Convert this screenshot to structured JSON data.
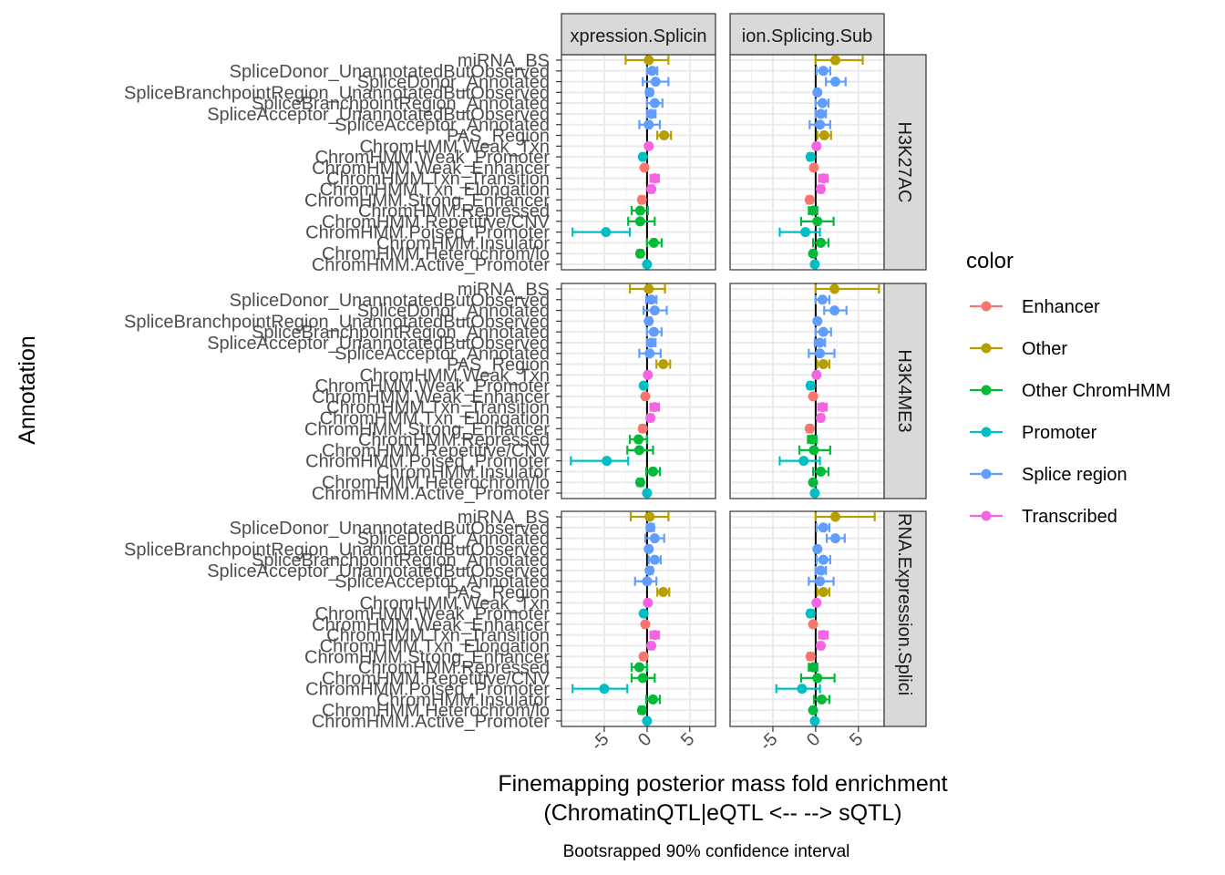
{
  "chart_data": {
    "type": "scatter",
    "subtype": "faceted point-range (dot with 90% CI error bars)",
    "xlabel": "Finemapping posterior mass fold enrichment\n(ChromatinQTL|eQTL <-- --> sQTL)",
    "caption": "Bootsrapped 90% confidence interval",
    "ylabel": "Annotation",
    "xlim": [
      -10,
      8
    ],
    "xticks": [
      -5,
      0,
      5
    ],
    "xtick_labels": [
      "-5",
      "0",
      "5"
    ],
    "reference_line_x": 0,
    "grid": true,
    "legend_title": "color",
    "legend_position": "right",
    "legend": [
      {
        "label": "Enhancer",
        "color": "#F8766D"
      },
      {
        "label": "Other",
        "color": "#B79F00"
      },
      {
        "label": "Other ChromHMM",
        "color": "#00BA38"
      },
      {
        "label": "Promoter",
        "color": "#00BFC4"
      },
      {
        "label": "Splice region",
        "color": "#619CFF"
      },
      {
        "label": "Transcribed",
        "color": "#F564E3"
      }
    ],
    "col_strips": [
      "xpression.Splicin",
      "ion.Splicing.Sub"
    ],
    "row_strips": [
      "H3K27AC",
      "H3K4ME3",
      "RNA.Expression.Splici"
    ],
    "annotations": [
      {
        "label": "miRNA_BS",
        "cat": "Other"
      },
      {
        "label": "SpliceDonor_UnannotatedButObserved",
        "cat": "Splice region"
      },
      {
        "label": "SpliceDonor_Annotated",
        "cat": "Splice region"
      },
      {
        "label": "SpliceBranchpointRegion_UnannotatedButObserved",
        "cat": "Splice region"
      },
      {
        "label": "SpliceBranchpointRegion_Annotated",
        "cat": "Splice region"
      },
      {
        "label": "SpliceAcceptor_UnannotatedButObserved",
        "cat": "Splice region"
      },
      {
        "label": "SpliceAcceptor_Annotated",
        "cat": "Splice region"
      },
      {
        "label": "PAS_Region",
        "cat": "Other"
      },
      {
        "label": "ChromHMM.Weak_Txn",
        "cat": "Transcribed"
      },
      {
        "label": "ChromHMM.Weak_Promoter",
        "cat": "Promoter"
      },
      {
        "label": "ChromHMM.Weak_Enhancer",
        "cat": "Enhancer"
      },
      {
        "label": "ChromHMM.Txn_Transition",
        "cat": "Transcribed"
      },
      {
        "label": "ChromHMM.Txn_Elongation",
        "cat": "Transcribed"
      },
      {
        "label": "ChromHMM.Strong_Enhancer",
        "cat": "Enhancer"
      },
      {
        "label": "ChromHMM.Repressed",
        "cat": "Other ChromHMM"
      },
      {
        "label": "ChromHMM.Repetitive/CNV",
        "cat": "Other ChromHMM"
      },
      {
        "label": "ChromHMM.Poised_Promoter",
        "cat": "Promoter"
      },
      {
        "label": "ChromHMM.Insulator",
        "cat": "Other ChromHMM"
      },
      {
        "label": "ChromHMM.Heterochrom/lo",
        "cat": "Other ChromHMM"
      },
      {
        "label": "ChromHMM.Active_Promoter",
        "cat": "Promoter"
      }
    ],
    "panels": [
      {
        "row": 0,
        "col": 0,
        "points": [
          [
            0.2,
            -2.5,
            2.5
          ],
          [
            0.6,
            0,
            1.2
          ],
          [
            1.0,
            -0.5,
            2.5
          ],
          [
            0.3,
            -0.1,
            0.6
          ],
          [
            0.9,
            0,
            1.8
          ],
          [
            0.5,
            0,
            1.0
          ],
          [
            0.2,
            -0.9,
            1.5
          ],
          [
            2.0,
            1.2,
            2.8
          ],
          [
            0.2,
            0,
            0.4
          ],
          [
            -0.5,
            -0.7,
            -0.3
          ],
          [
            -0.3,
            -0.5,
            -0.1
          ],
          [
            0.9,
            0.4,
            1.4
          ],
          [
            0.5,
            0.2,
            0.8
          ],
          [
            -0.6,
            -0.9,
            -0.3
          ],
          [
            -0.8,
            -1.8,
            0.1
          ],
          [
            -0.8,
            -2.2,
            0.9
          ],
          [
            -4.8,
            -8.7,
            -2.0
          ],
          [
            0.8,
            0,
            1.7
          ],
          [
            -0.8,
            -1.1,
            -0.5
          ],
          [
            0,
            -0.2,
            0.2
          ]
        ]
      },
      {
        "row": 0,
        "col": 1,
        "points": [
          [
            2.3,
            0,
            5.5
          ],
          [
            0.9,
            0.1,
            1.7
          ],
          [
            2.3,
            1.2,
            3.5
          ],
          [
            0.2,
            0,
            0.4
          ],
          [
            0.8,
            0,
            1.5
          ],
          [
            0.6,
            0,
            1.2
          ],
          [
            0.5,
            -0.7,
            1.7
          ],
          [
            1.0,
            0.2,
            1.8
          ],
          [
            0.1,
            -0.1,
            0.3
          ],
          [
            -0.6,
            -0.9,
            -0.3
          ],
          [
            -0.2,
            -0.4,
            0
          ],
          [
            0.9,
            0.4,
            1.4
          ],
          [
            0.6,
            0.3,
            0.9
          ],
          [
            -0.7,
            -1.0,
            -0.4
          ],
          [
            -0.3,
            -0.8,
            0.2
          ],
          [
            0.2,
            -1.7,
            2.1
          ],
          [
            -1.2,
            -4.2,
            0.5
          ],
          [
            0.6,
            -0.3,
            1.5
          ],
          [
            -0.3,
            -0.5,
            -0.1
          ],
          [
            -0.1,
            -0.3,
            0.1
          ]
        ]
      },
      {
        "row": 1,
        "col": 0,
        "points": [
          [
            0.2,
            -2.0,
            2.1
          ],
          [
            0.5,
            -0.1,
            1.1
          ],
          [
            0.9,
            -0.4,
            2.3
          ],
          [
            0.2,
            -0.1,
            0.5
          ],
          [
            0.8,
            0,
            1.7
          ],
          [
            0.5,
            0,
            1.0
          ],
          [
            0.3,
            -0.9,
            1.6
          ],
          [
            1.9,
            1.1,
            2.7
          ],
          [
            0.1,
            -0.1,
            0.3
          ],
          [
            -0.4,
            -0.6,
            -0.2
          ],
          [
            -0.2,
            -0.4,
            0
          ],
          [
            0.9,
            0.4,
            1.4
          ],
          [
            0.4,
            0.1,
            0.7
          ],
          [
            -0.5,
            -0.8,
            -0.2
          ],
          [
            -1.0,
            -2.0,
            0
          ],
          [
            -0.9,
            -2.3,
            0.7
          ],
          [
            -4.7,
            -8.9,
            -2.2
          ],
          [
            0.7,
            -0.1,
            1.5
          ],
          [
            -0.8,
            -1.1,
            -0.5
          ],
          [
            0,
            -0.2,
            0.2
          ]
        ]
      },
      {
        "row": 1,
        "col": 1,
        "points": [
          [
            2.2,
            0,
            7.4
          ],
          [
            0.8,
            0,
            1.6
          ],
          [
            2.2,
            1.0,
            3.6
          ],
          [
            0.2,
            0,
            0.4
          ],
          [
            0.9,
            0,
            1.8
          ],
          [
            0.5,
            -0.1,
            1.1
          ],
          [
            0.5,
            -0.8,
            2.2
          ],
          [
            0.9,
            0.2,
            1.6
          ],
          [
            0.1,
            -0.1,
            0.3
          ],
          [
            -0.6,
            -0.9,
            -0.3
          ],
          [
            -0.3,
            -0.5,
            -0.1
          ],
          [
            0.8,
            0.3,
            1.3
          ],
          [
            0.6,
            0.3,
            0.9
          ],
          [
            -0.7,
            -1.0,
            -0.4
          ],
          [
            -0.4,
            -0.9,
            0.1
          ],
          [
            -0.2,
            -1.9,
            1.7
          ],
          [
            -1.4,
            -4.2,
            0.5
          ],
          [
            0.6,
            -0.3,
            1.5
          ],
          [
            -0.3,
            -0.5,
            -0.1
          ],
          [
            -0.1,
            -0.3,
            0.1
          ]
        ]
      },
      {
        "row": 2,
        "col": 0,
        "points": [
          [
            0.3,
            -1.9,
            2.5
          ],
          [
            0.4,
            0,
            0.8
          ],
          [
            0.9,
            -0.2,
            2.0
          ],
          [
            0.2,
            0,
            0.4
          ],
          [
            0.9,
            0.2,
            1.6
          ],
          [
            0.3,
            0,
            0.6
          ],
          [
            0.0,
            -1.4,
            1.1
          ],
          [
            1.9,
            1.2,
            2.6
          ],
          [
            0.1,
            -0.1,
            0.3
          ],
          [
            -0.4,
            -0.6,
            -0.2
          ],
          [
            -0.2,
            -0.4,
            0
          ],
          [
            0.9,
            0.4,
            1.4
          ],
          [
            0.5,
            0.2,
            0.8
          ],
          [
            -0.4,
            -0.7,
            -0.1
          ],
          [
            -0.9,
            -1.8,
            0
          ],
          [
            -0.5,
            -1.8,
            0.9
          ],
          [
            -5.0,
            -8.7,
            -2.3
          ],
          [
            0.7,
            -0.1,
            1.5
          ],
          [
            -0.6,
            -0.9,
            -0.3
          ],
          [
            0,
            -0.2,
            0.2
          ]
        ]
      },
      {
        "row": 2,
        "col": 1,
        "points": [
          [
            2.3,
            0,
            6.9
          ],
          [
            0.9,
            0.1,
            1.6
          ],
          [
            2.3,
            1.3,
            3.4
          ],
          [
            0.2,
            0,
            0.4
          ],
          [
            0.9,
            0.1,
            1.7
          ],
          [
            0.6,
            0,
            1.2
          ],
          [
            0.5,
            -0.8,
            2.1
          ],
          [
            0.9,
            0.2,
            1.6
          ],
          [
            0.1,
            -0.1,
            0.3
          ],
          [
            -0.6,
            -0.9,
            -0.3
          ],
          [
            -0.3,
            -0.5,
            -0.1
          ],
          [
            0.9,
            0.4,
            1.4
          ],
          [
            0.6,
            0.3,
            0.9
          ],
          [
            -0.6,
            -0.9,
            -0.3
          ],
          [
            -0.3,
            -0.8,
            0.2
          ],
          [
            0.2,
            -1.7,
            2.2
          ],
          [
            -1.6,
            -4.6,
            0.5
          ],
          [
            0.7,
            -0.2,
            1.6
          ],
          [
            -0.3,
            -0.5,
            -0.1
          ],
          [
            -0.1,
            -0.3,
            0.1
          ]
        ]
      }
    ]
  }
}
